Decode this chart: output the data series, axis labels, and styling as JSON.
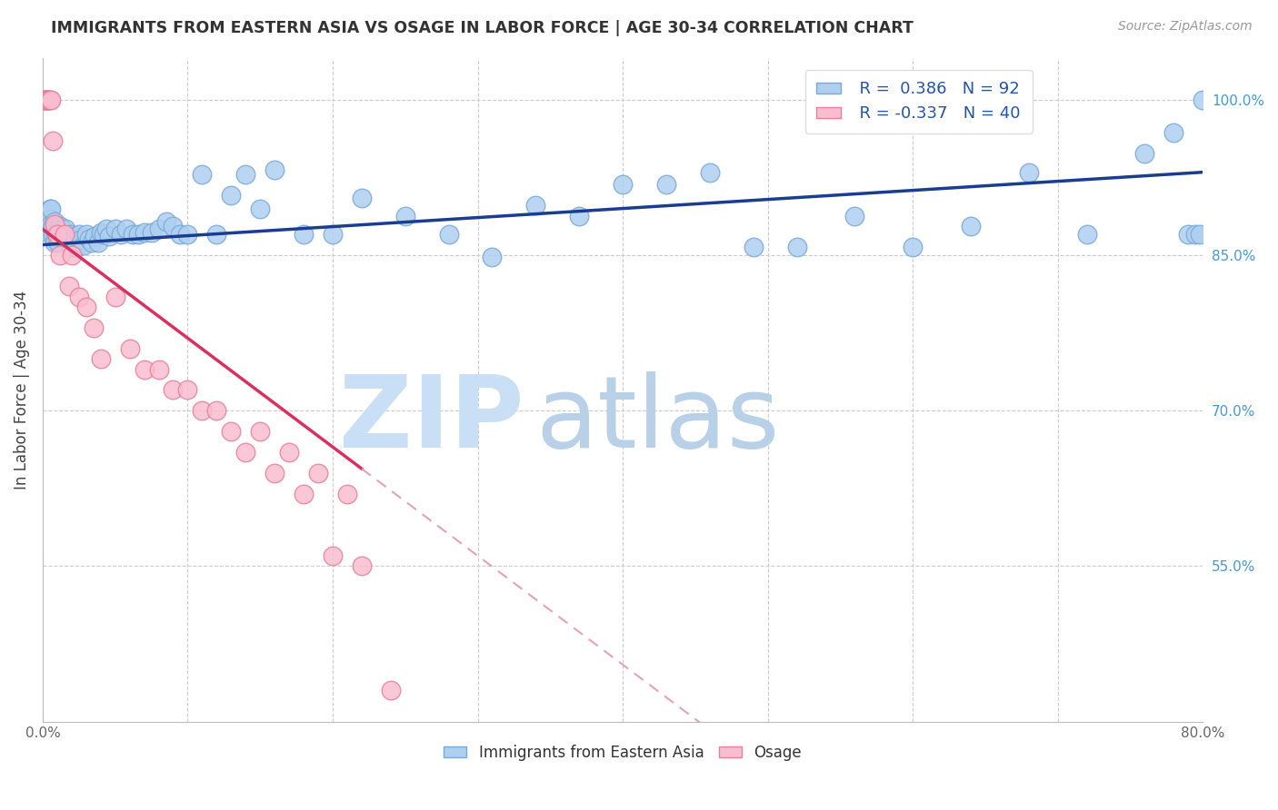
{
  "title": "IMMIGRANTS FROM EASTERN ASIA VS OSAGE IN LABOR FORCE | AGE 30-34 CORRELATION CHART",
  "source": "Source: ZipAtlas.com",
  "ylabel": "In Labor Force | Age 30-34",
  "right_yticks": [
    0.55,
    0.7,
    0.85,
    1.0
  ],
  "right_yticklabels": [
    "55.0%",
    "70.0%",
    "85.0%",
    "100.0%"
  ],
  "xlim": [
    0.0,
    0.8
  ],
  "ylim": [
    0.4,
    1.04
  ],
  "blue_R": 0.386,
  "blue_N": 92,
  "pink_R": -0.337,
  "pink_N": 40,
  "blue_color": "#aecff0",
  "blue_edge_color": "#7aaad8",
  "pink_color": "#f9bdd0",
  "pink_edge_color": "#e8809a",
  "trend_blue_color": "#1a3d8f",
  "trend_pink_solid_color": "#d93060",
  "trend_pink_dash_color": "#e8a0b8",
  "watermark_zip_color": "#c8dff5",
  "watermark_atlas_color": "#b8d0e8",
  "legend_blue_label": "Immigrants from Eastern Asia",
  "legend_pink_label": "Osage",
  "blue_scatter_x": [
    0.001,
    0.002,
    0.003,
    0.003,
    0.004,
    0.004,
    0.005,
    0.005,
    0.006,
    0.006,
    0.007,
    0.007,
    0.008,
    0.008,
    0.009,
    0.009,
    0.01,
    0.01,
    0.011,
    0.011,
    0.012,
    0.013,
    0.014,
    0.015,
    0.016,
    0.017,
    0.018,
    0.019,
    0.02,
    0.021,
    0.022,
    0.023,
    0.025,
    0.026,
    0.028,
    0.03,
    0.032,
    0.034,
    0.036,
    0.038,
    0.04,
    0.042,
    0.044,
    0.046,
    0.05,
    0.054,
    0.058,
    0.062,
    0.066,
    0.07,
    0.075,
    0.08,
    0.085,
    0.09,
    0.095,
    0.1,
    0.11,
    0.12,
    0.13,
    0.14,
    0.15,
    0.16,
    0.18,
    0.2,
    0.22,
    0.25,
    0.28,
    0.31,
    0.34,
    0.37,
    0.4,
    0.43,
    0.46,
    0.49,
    0.52,
    0.56,
    0.6,
    0.64,
    0.68,
    0.72,
    0.76,
    0.78,
    0.79,
    0.795,
    0.798,
    0.8
  ],
  "blue_scatter_y": [
    0.875,
    0.88,
    0.878,
    0.89,
    0.872,
    0.885,
    0.895,
    0.885,
    0.88,
    0.895,
    0.87,
    0.878,
    0.862,
    0.882,
    0.872,
    0.878,
    0.868,
    0.875,
    0.862,
    0.872,
    0.878,
    0.875,
    0.87,
    0.87,
    0.875,
    0.868,
    0.862,
    0.87,
    0.858,
    0.862,
    0.868,
    0.858,
    0.87,
    0.865,
    0.86,
    0.87,
    0.866,
    0.862,
    0.868,
    0.862,
    0.872,
    0.87,
    0.875,
    0.868,
    0.875,
    0.87,
    0.875,
    0.87,
    0.87,
    0.872,
    0.872,
    0.875,
    0.882,
    0.878,
    0.87,
    0.87,
    0.928,
    0.87,
    0.908,
    0.928,
    0.895,
    0.932,
    0.87,
    0.87,
    0.905,
    0.888,
    0.87,
    0.848,
    0.898,
    0.888,
    0.918,
    0.918,
    0.93,
    0.858,
    0.858,
    0.888,
    0.858,
    0.878,
    0.93,
    0.87,
    0.948,
    0.968,
    0.87,
    0.87,
    0.87,
    1.0
  ],
  "pink_scatter_x": [
    0.001,
    0.001,
    0.002,
    0.002,
    0.003,
    0.003,
    0.004,
    0.004,
    0.005,
    0.006,
    0.007,
    0.008,
    0.01,
    0.012,
    0.015,
    0.018,
    0.02,
    0.025,
    0.03,
    0.035,
    0.04,
    0.05,
    0.06,
    0.07,
    0.08,
    0.09,
    0.1,
    0.11,
    0.12,
    0.13,
    0.14,
    0.15,
    0.16,
    0.17,
    0.18,
    0.19,
    0.2,
    0.21,
    0.22,
    0.24
  ],
  "pink_scatter_y": [
    1.0,
    1.0,
    1.0,
    1.0,
    1.0,
    1.0,
    1.0,
    1.0,
    1.0,
    1.0,
    0.96,
    0.88,
    0.87,
    0.85,
    0.87,
    0.82,
    0.85,
    0.81,
    0.8,
    0.78,
    0.75,
    0.81,
    0.76,
    0.74,
    0.74,
    0.72,
    0.72,
    0.7,
    0.7,
    0.68,
    0.66,
    0.68,
    0.64,
    0.66,
    0.62,
    0.64,
    0.56,
    0.62,
    0.55,
    0.43
  ]
}
